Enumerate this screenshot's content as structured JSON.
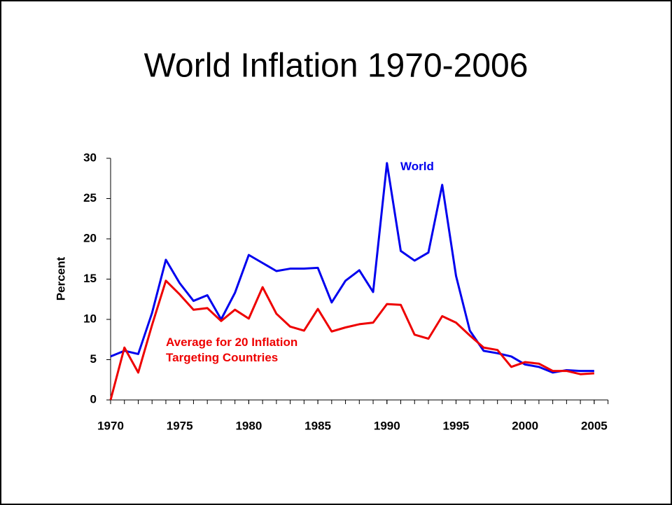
{
  "chart_data": {
    "type": "line",
    "title": "World Inflation 1970-2006",
    "y_label": "Percent",
    "x": [
      1970,
      1971,
      1972,
      1973,
      1974,
      1975,
      1976,
      1977,
      1978,
      1979,
      1980,
      1981,
      1982,
      1983,
      1984,
      1985,
      1986,
      1987,
      1988,
      1989,
      1990,
      1991,
      1992,
      1993,
      1994,
      1995,
      1996,
      1997,
      1998,
      1999,
      2000,
      2001,
      2002,
      2003,
      2004,
      2005
    ],
    "series": [
      {
        "name": "World",
        "color": "#0000ee",
        "values": [
          5.4,
          6.1,
          5.7,
          10.8,
          17.4,
          14.5,
          12.3,
          13.0,
          10.0,
          13.3,
          18.0,
          17.0,
          16.0,
          16.3,
          16.3,
          16.4,
          12.1,
          14.8,
          16.1,
          13.4,
          29.4,
          18.5,
          17.3,
          18.3,
          26.7,
          15.4,
          8.6,
          6.1,
          5.8,
          5.4,
          4.4,
          4.1,
          3.4,
          3.7,
          3.6,
          3.6
        ]
      },
      {
        "name": "Average for 20 Inflation Targeting Countries",
        "color": "#ee0000",
        "values": [
          0,
          6.5,
          3.4,
          9.3,
          14.8,
          13.1,
          11.2,
          11.4,
          9.8,
          11.2,
          10.1,
          14.0,
          10.7,
          9.1,
          8.6,
          11.3,
          8.5,
          9.0,
          9.4,
          9.6,
          11.9,
          11.8,
          8.1,
          7.6,
          10.4,
          9.6,
          8.0,
          6.5,
          6.2,
          4.1,
          4.7,
          4.5,
          3.6,
          3.6,
          3.2,
          3.3
        ]
      }
    ],
    "xlim": [
      1970,
      2006
    ],
    "xticks": [
      1970,
      1975,
      1980,
      1985,
      1990,
      1995,
      2000,
      2005
    ],
    "ylim": [
      0,
      30
    ],
    "yticks": [
      0,
      5,
      10,
      15,
      20,
      25,
      30
    ],
    "grid": false
  }
}
